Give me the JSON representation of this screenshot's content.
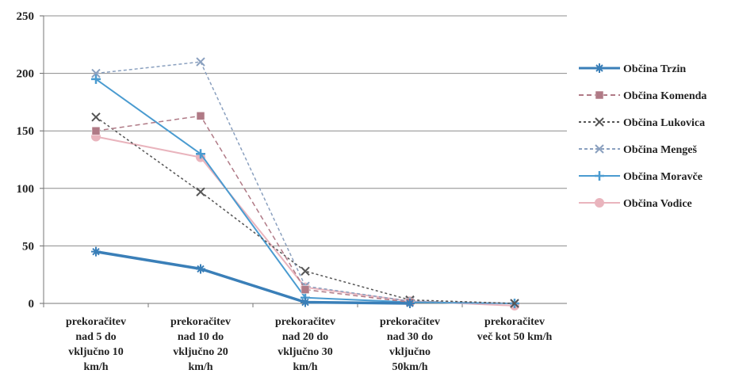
{
  "chart_data": {
    "type": "line",
    "categories": [
      [
        "prekoračitev",
        "nad 5 do",
        "vključno 10",
        "km/h"
      ],
      [
        "prekoračitev",
        "nad  10 do",
        "vključno 20",
        "km/h"
      ],
      [
        "prekoračitev",
        "nad  20 do",
        "vključno 30",
        "km/h"
      ],
      [
        "prekoračitev",
        "nad  30  do",
        "vključno",
        "50km/h"
      ],
      [
        "prekoračitev",
        "več kot 50 km/h"
      ]
    ],
    "ylim": [
      0,
      250
    ],
    "yticks": [
      0,
      50,
      100,
      150,
      200,
      250
    ],
    "grid": true,
    "legend_position": "right",
    "series": [
      {
        "name": "Občina Trzin",
        "color": "#3a7fb8",
        "dash": "",
        "marker": "star",
        "width": 3.5,
        "values": [
          45,
          30,
          1,
          0,
          null
        ]
      },
      {
        "name": "Občina Komenda",
        "color": "#b07a86",
        "dash": "6,4",
        "marker": "square",
        "width": 1.5,
        "values": [
          150,
          163,
          12,
          1,
          null
        ]
      },
      {
        "name": "Občina Lukovica",
        "color": "#555555",
        "dash": "3,3",
        "marker": "x",
        "width": 1.5,
        "values": [
          162,
          97,
          28,
          3,
          0
        ]
      },
      {
        "name": "Občina Mengeš",
        "color": "#8aa0bf",
        "dash": "4,3",
        "marker": "x",
        "width": 1.5,
        "values": [
          200,
          210,
          15,
          2,
          0
        ]
      },
      {
        "name": "Občina Moravče",
        "color": "#4a9bd0",
        "dash": "",
        "marker": "plus",
        "width": 2,
        "values": [
          195,
          130,
          5,
          1,
          0
        ]
      },
      {
        "name": "Občina Vodice",
        "color": "#e9b4bd",
        "dash": "",
        "marker": "circle",
        "width": 2,
        "values": [
          145,
          127,
          14,
          2,
          -2
        ]
      }
    ]
  }
}
